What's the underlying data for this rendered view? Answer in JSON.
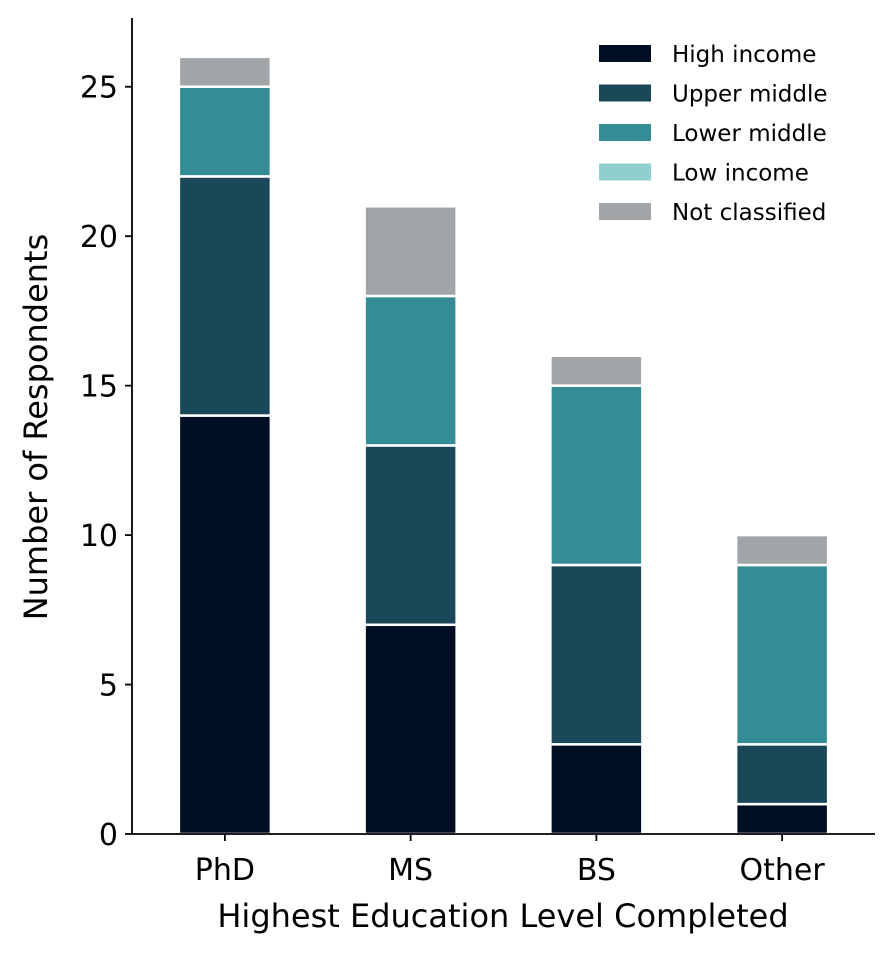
{
  "chart_data": {
    "type": "bar",
    "stacked": true,
    "title": "",
    "xlabel": "Highest Education Level Completed",
    "ylabel": "Number of Respondents",
    "categories": [
      "PhD",
      "MS",
      "BS",
      "Other"
    ],
    "ylim": [
      0,
      27.3
    ],
    "yticks": [
      0,
      5,
      10,
      15,
      20,
      25
    ],
    "grid": false,
    "legend_position": "top-right",
    "series": [
      {
        "name": "High income",
        "color": "#000e23",
        "values": [
          14,
          7,
          3,
          1
        ]
      },
      {
        "name": "Upper middle",
        "color": "#1b4858",
        "values": [
          8,
          6,
          6,
          2
        ]
      },
      {
        "name": "Lower middle",
        "color": "#368c95",
        "values": [
          3,
          5,
          6,
          6
        ]
      },
      {
        "name": "Low income",
        "color": "#8fcfcf",
        "values": [
          0,
          0,
          0,
          0
        ]
      },
      {
        "name": "Not classified",
        "color": "#a2a5a8",
        "values": [
          1,
          3,
          1,
          1
        ]
      }
    ]
  }
}
